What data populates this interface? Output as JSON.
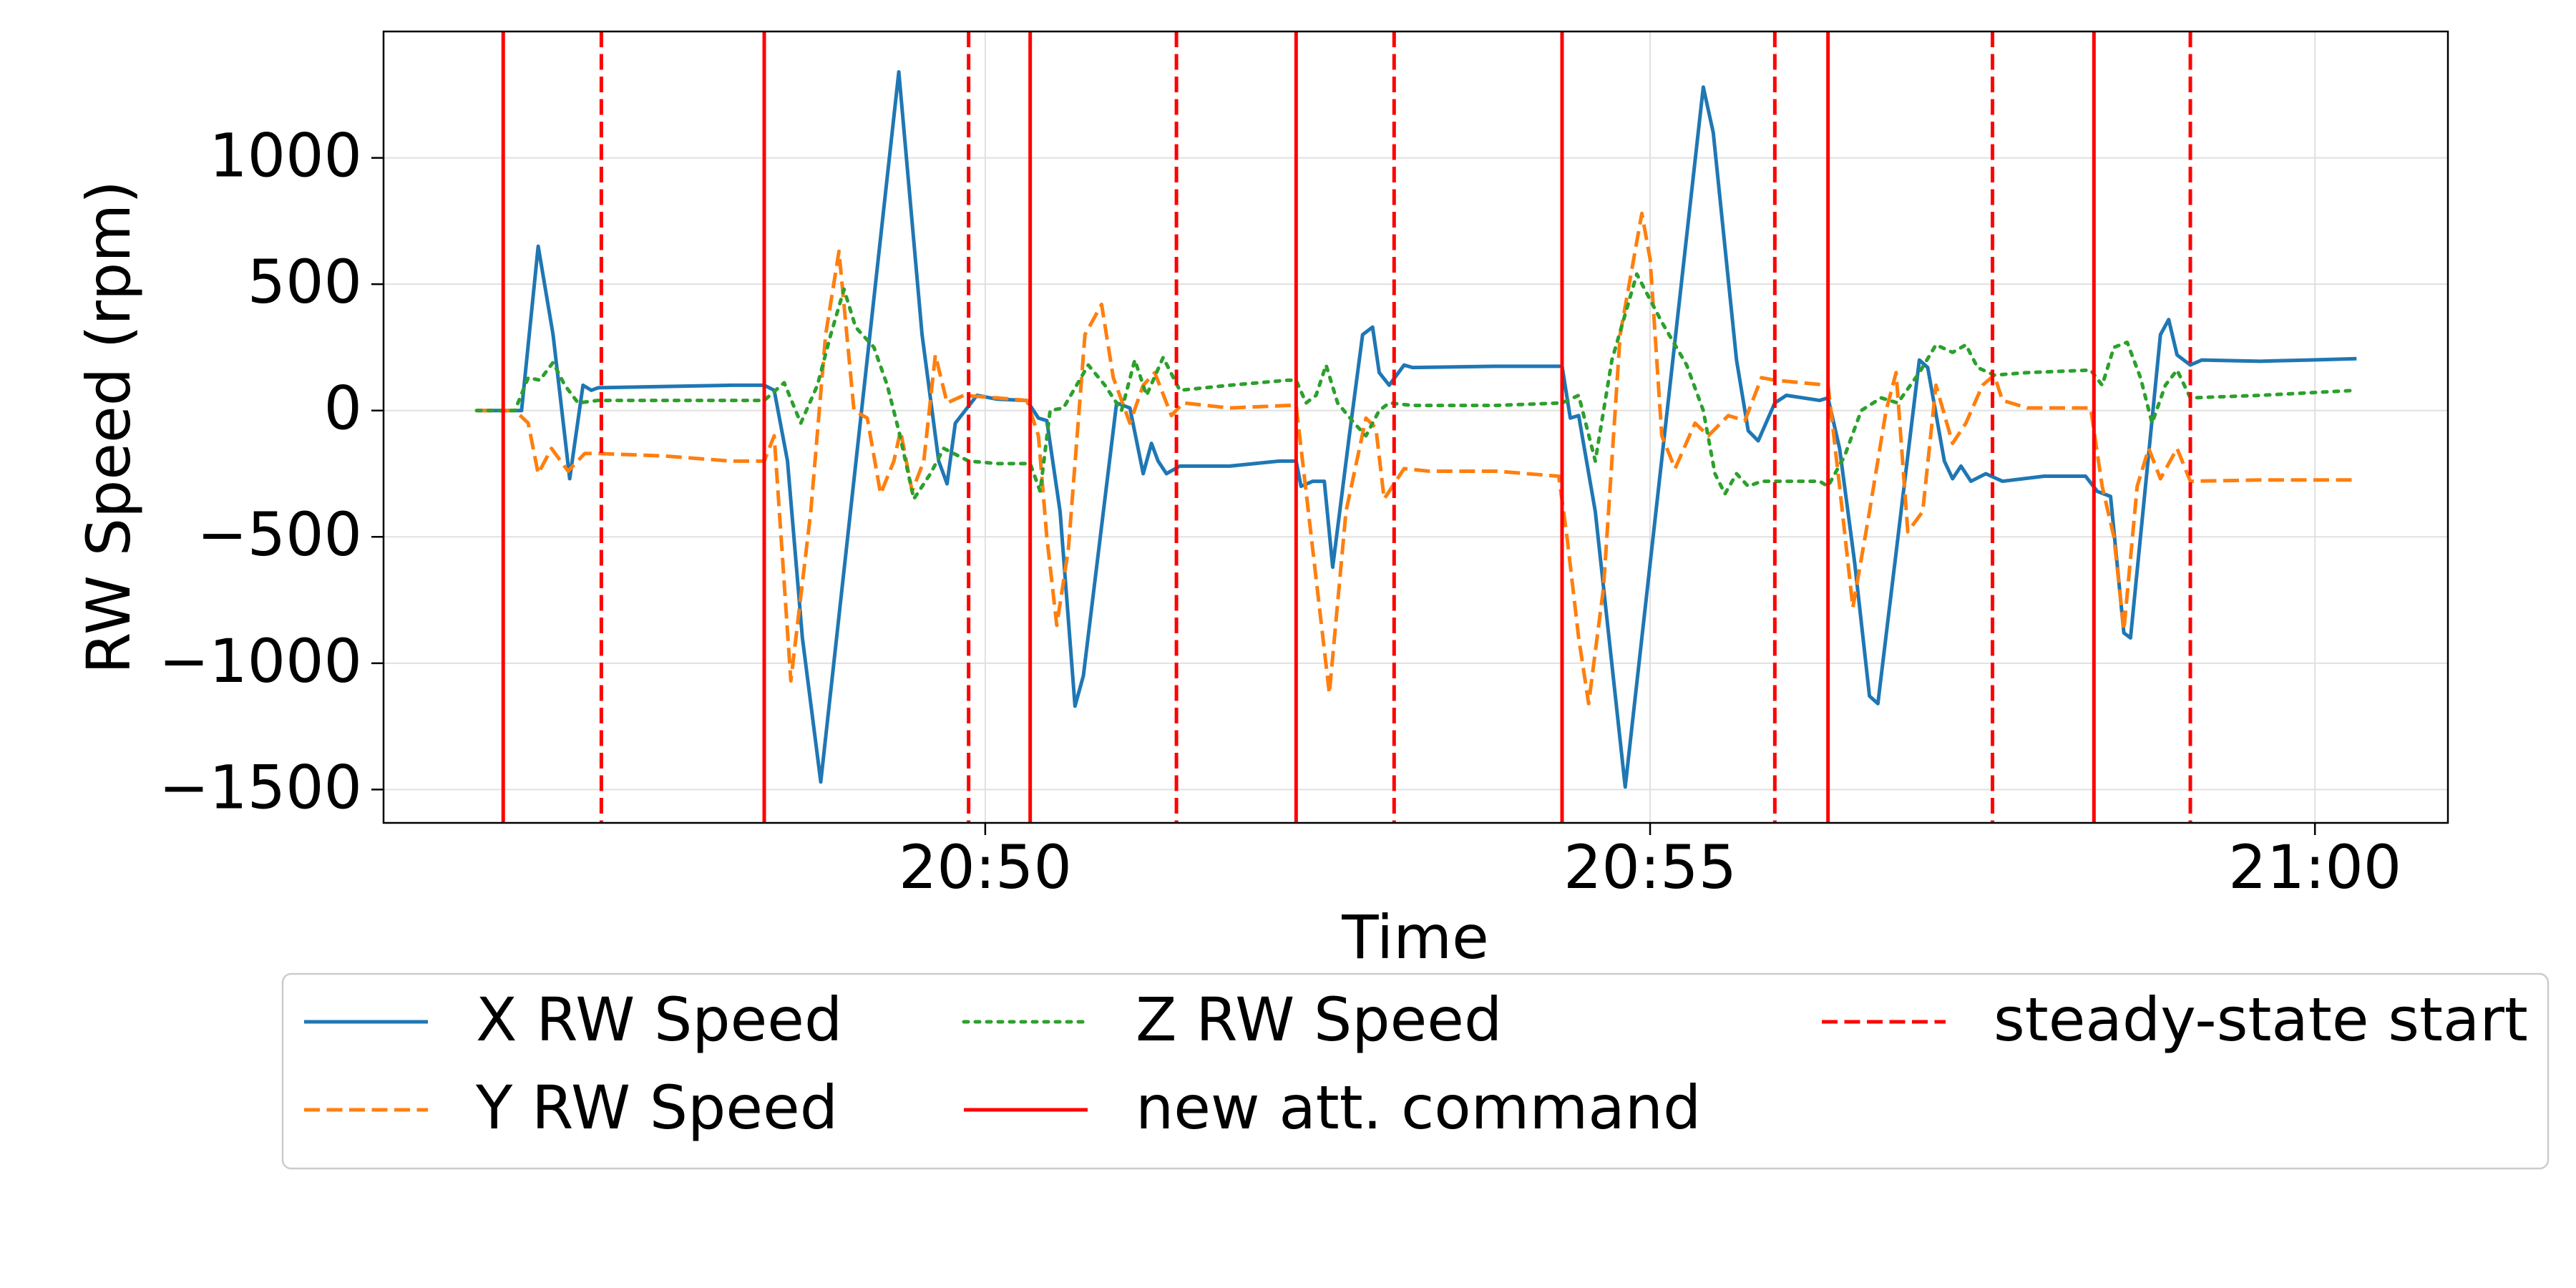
{
  "chart_data": {
    "type": "line",
    "xlabel": "Time",
    "ylabel": "RW Speed (rpm)",
    "xlim": [
      1245.475,
      1261.0
    ],
    "ylim": [
      -1632,
      1500
    ],
    "xticks": [
      {
        "value": 1250,
        "label": "20:50"
      },
      {
        "value": 1255,
        "label": "20:55"
      },
      {
        "value": 1260,
        "label": "21:00"
      }
    ],
    "yticks": [
      {
        "value": -1500,
        "label": "−1500"
      },
      {
        "value": -1000,
        "label": "−1000"
      },
      {
        "value": -500,
        "label": "−500"
      },
      0,
      500,
      1000
    ],
    "grid": true,
    "legend": "below",
    "series": [
      {
        "name": "X RW Speed",
        "color": "#1f77b4",
        "style": "solid",
        "x": [
          1246.175,
          1246.513,
          1246.638,
          1246.75,
          1246.875,
          1246.975,
          1247.038,
          1247.088,
          1247.588,
          1248.088,
          1248.338,
          1248.413,
          1248.513,
          1248.625,
          1248.763,
          1249.35,
          1249.525,
          1249.65,
          1249.713,
          1249.775,
          1249.938,
          1250.088,
          1250.313,
          1250.4,
          1250.463,
          1250.563,
          1250.675,
          1250.738,
          1250.988,
          1251.088,
          1251.188,
          1251.25,
          1251.3,
          1251.363,
          1251.463,
          1251.838,
          1252.213,
          1252.338,
          1252.375,
          1252.463,
          1252.55,
          1252.613,
          1252.738,
          1252.838,
          1252.913,
          1252.963,
          1253.038,
          1253.15,
          1253.213,
          1253.838,
          1254.338,
          1254.4,
          1254.463,
          1254.588,
          1254.813,
          1255.4,
          1255.475,
          1255.65,
          1255.738,
          1255.813,
          1255.938,
          1256.025,
          1256.275,
          1256.338,
          1256.425,
          1256.538,
          1256.65,
          1256.713,
          1257.025,
          1257.088,
          1257.213,
          1257.275,
          1257.338,
          1257.413,
          1257.525,
          1257.65,
          1257.963,
          1258.275,
          1258.363,
          1258.463,
          1258.563,
          1258.613,
          1258.838,
          1258.9,
          1258.963,
          1259.063,
          1259.15,
          1259.588,
          1259.963,
          1260.313
        ],
        "values": [
          0,
          0,
          650,
          300,
          -270,
          100,
          80,
          90,
          95,
          100,
          100,
          80,
          -200,
          -900,
          -1470,
          1340,
          300,
          -200,
          -290,
          -50,
          60,
          45,
          40,
          -30,
          -40,
          -400,
          -1170,
          -1050,
          30,
          10,
          -250,
          -130,
          -200,
          -250,
          -220,
          -220,
          -200,
          -200,
          -300,
          -280,
          -280,
          -620,
          -100,
          300,
          330,
          150,
          100,
          180,
          170,
          175,
          175,
          -30,
          -20,
          -400,
          -1490,
          1280,
          1100,
          200,
          -80,
          -120,
          30,
          60,
          40,
          50,
          -150,
          -600,
          -1130,
          -1160,
          200,
          170,
          -200,
          -270,
          -220,
          -280,
          -250,
          -280,
          -260,
          -260,
          -320,
          -340,
          -880,
          -900,
          300,
          360,
          220,
          180,
          200,
          195,
          200,
          205
        ]
      },
      {
        "name": "Y RW Speed",
        "color": "#ff7f0e",
        "style": "dashed",
        "x": [
          1246.175,
          1246.463,
          1246.563,
          1246.638,
          1246.738,
          1246.863,
          1246.988,
          1247.088,
          1247.588,
          1248.088,
          1248.338,
          1248.413,
          1248.538,
          1248.688,
          1248.8,
          1248.9,
          1249.013,
          1249.113,
          1249.213,
          1249.313,
          1249.363,
          1249.45,
          1249.538,
          1249.625,
          1249.713,
          1249.838,
          1250.088,
          1250.313,
          1250.4,
          1250.463,
          1250.538,
          1250.625,
          1250.75,
          1250.875,
          1250.963,
          1251.088,
          1251.188,
          1251.275,
          1251.4,
          1251.488,
          1251.838,
          1252.275,
          1252.338,
          1252.463,
          1252.588,
          1252.713,
          1252.863,
          1252.938,
          1253.0,
          1253.15,
          1253.338,
          1253.838,
          1254.313,
          1254.375,
          1254.463,
          1254.538,
          1254.65,
          1254.775,
          1254.938,
          1255.0,
          1255.088,
          1255.188,
          1255.338,
          1255.438,
          1255.588,
          1255.713,
          1255.838,
          1255.938,
          1256.338,
          1256.425,
          1256.525,
          1256.65,
          1256.775,
          1256.85,
          1256.938,
          1257.05,
          1257.15,
          1257.275,
          1257.375,
          1257.5,
          1257.588,
          1257.65,
          1257.838,
          1258.313,
          1258.4,
          1258.488,
          1258.563,
          1258.663,
          1258.75,
          1258.838,
          1258.963,
          1259.063,
          1259.588,
          1260.313
        ],
        "values": [
          0,
          0,
          -50,
          -250,
          -150,
          -240,
          -170,
          -170,
          -180,
          -200,
          -200,
          -100,
          -1070,
          -400,
          300,
          630,
          0,
          -30,
          -330,
          -200,
          -80,
          -320,
          -200,
          220,
          30,
          60,
          50,
          40,
          -100,
          -500,
          -850,
          -550,
          300,
          420,
          130,
          -50,
          100,
          150,
          -20,
          30,
          10,
          20,
          20,
          -550,
          -1120,
          -400,
          -30,
          -70,
          -350,
          -230,
          -240,
          -240,
          -260,
          -500,
          -900,
          -1160,
          -700,
          300,
          780,
          600,
          -100,
          -230,
          -50,
          -100,
          -20,
          -40,
          130,
          120,
          100,
          -300,
          -780,
          -400,
          0,
          150,
          -480,
          -400,
          100,
          -130,
          -50,
          100,
          140,
          40,
          10,
          10,
          -300,
          -500,
          -870,
          -300,
          -150,
          -270,
          -150,
          -280,
          -275,
          -275
        ]
      },
      {
        "name": "Z RW Speed",
        "color": "#2ca02c",
        "style": "dotted",
        "x": [
          1246.175,
          1246.463,
          1246.563,
          1246.65,
          1246.75,
          1246.838,
          1246.938,
          1247.088,
          1247.588,
          1248.088,
          1248.338,
          1248.488,
          1248.613,
          1248.738,
          1248.838,
          1248.938,
          1249.025,
          1249.163,
          1249.263,
          1249.35,
          1249.463,
          1249.588,
          1249.688,
          1249.875,
          1250.088,
          1250.338,
          1250.413,
          1250.488,
          1250.588,
          1250.775,
          1250.9,
          1251.025,
          1251.125,
          1251.213,
          1251.338,
          1251.463,
          1251.838,
          1252.275,
          1252.338,
          1252.413,
          1252.488,
          1252.563,
          1252.65,
          1252.775,
          1252.863,
          1252.963,
          1253.038,
          1253.213,
          1253.838,
          1254.338,
          1254.463,
          1254.588,
          1254.713,
          1254.9,
          1255.088,
          1255.275,
          1255.4,
          1255.488,
          1255.563,
          1255.65,
          1255.738,
          1255.838,
          1256.275,
          1256.338,
          1256.463,
          1256.588,
          1256.738,
          1256.863,
          1257.025,
          1257.15,
          1257.275,
          1257.375,
          1257.463,
          1257.588,
          1257.838,
          1258.313,
          1258.4,
          1258.488,
          1258.588,
          1258.688,
          1258.775,
          1258.875,
          1258.963,
          1259.063,
          1259.588,
          1260.313
        ],
        "values": [
          0,
          0,
          130,
          120,
          190,
          100,
          30,
          40,
          40,
          40,
          40,
          110,
          -50,
          100,
          300,
          480,
          330,
          250,
          100,
          -80,
          -350,
          -250,
          -150,
          -200,
          -210,
          -210,
          -320,
          0,
          10,
          180,
          100,
          0,
          200,
          60,
          210,
          80,
          100,
          120,
          120,
          30,
          60,
          180,
          30,
          -50,
          -100,
          0,
          30,
          20,
          20,
          30,
          60,
          -200,
          200,
          540,
          350,
          180,
          0,
          -250,
          -330,
          -250,
          -300,
          -280,
          -280,
          -300,
          -180,
          0,
          50,
          30,
          150,
          260,
          230,
          260,
          170,
          140,
          150,
          160,
          100,
          250,
          270,
          130,
          -50,
          100,
          160,
          50,
          60,
          80
        ]
      }
    ],
    "vlines": [
      {
        "name": "new att. command",
        "color": "#ff0000",
        "style": "solid",
        "x": [
          1246.375,
          1248.338,
          1250.338,
          1252.338,
          1254.338,
          1256.338,
          1258.338
        ]
      },
      {
        "name": "steady-state start",
        "color": "#ff0000",
        "style": "dashed",
        "x": [
          1247.113,
          1249.875,
          1251.438,
          1253.075,
          1255.938,
          1257.575,
          1259.063
        ]
      }
    ]
  }
}
